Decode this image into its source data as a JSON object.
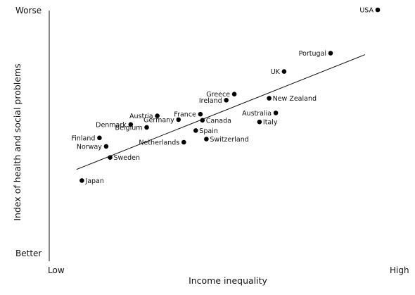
{
  "chart_data": {
    "type": "scatter",
    "title": "",
    "xlabel": "Income inequality",
    "ylabel": "Index of health and social problems",
    "x_tick_labels": {
      "low": "Low",
      "high": "High"
    },
    "y_tick_labels": {
      "low": "Better",
      "high": "Worse"
    },
    "xlim": [
      0,
      100
    ],
    "ylim": [
      0,
      100
    ],
    "grid": false,
    "trendline": {
      "x": [
        7.6,
        94.5
      ],
      "y": [
        23.7,
        78.6
      ]
    },
    "points": [
      {
        "label": "USA",
        "x": 98.3,
        "y": 100,
        "label_side": "left"
      },
      {
        "label": "Portugal",
        "x": 84.1,
        "y": 79.3,
        "label_side": "left"
      },
      {
        "label": "UK",
        "x": 70.1,
        "y": 70.5,
        "label_side": "left"
      },
      {
        "label": "Greece",
        "x": 55.1,
        "y": 59.7,
        "label_side": "left"
      },
      {
        "label": "Ireland",
        "x": 52.7,
        "y": 56.8,
        "label_side": "left"
      },
      {
        "label": "New Zealand",
        "x": 65.6,
        "y": 57.7,
        "label_side": "right"
      },
      {
        "label": "Australia",
        "x": 67.6,
        "y": 50.7,
        "label_side": "left"
      },
      {
        "label": "Italy",
        "x": 62.7,
        "y": 46.4,
        "label_side": "right"
      },
      {
        "label": "France",
        "x": 44.9,
        "y": 50.1,
        "label_side": "left"
      },
      {
        "label": "Canada",
        "x": 45.5,
        "y": 47.2,
        "label_side": "right"
      },
      {
        "label": "Austria",
        "x": 31.9,
        "y": 49.3,
        "label_side": "left"
      },
      {
        "label": "Germany",
        "x": 38.3,
        "y": 47.5,
        "label_side": "left"
      },
      {
        "label": "Denmark",
        "x": 23.9,
        "y": 45.2,
        "label_side": "left"
      },
      {
        "label": "Belgium",
        "x": 28.7,
        "y": 43.8,
        "label_side": "left"
      },
      {
        "label": "Spain",
        "x": 43.5,
        "y": 42.3,
        "label_side": "right"
      },
      {
        "label": "Switzerland",
        "x": 46.7,
        "y": 38.2,
        "label_side": "right"
      },
      {
        "label": "Netherlands",
        "x": 39.9,
        "y": 36.7,
        "label_side": "left"
      },
      {
        "label": "Finland",
        "x": 14.5,
        "y": 38.8,
        "label_side": "left"
      },
      {
        "label": "Norway",
        "x": 16.5,
        "y": 34.7,
        "label_side": "left"
      },
      {
        "label": "Sweden",
        "x": 17.7,
        "y": 29.4,
        "label_side": "right"
      },
      {
        "label": "Japan",
        "x": 9.2,
        "y": 18.4,
        "label_side": "right"
      }
    ]
  }
}
